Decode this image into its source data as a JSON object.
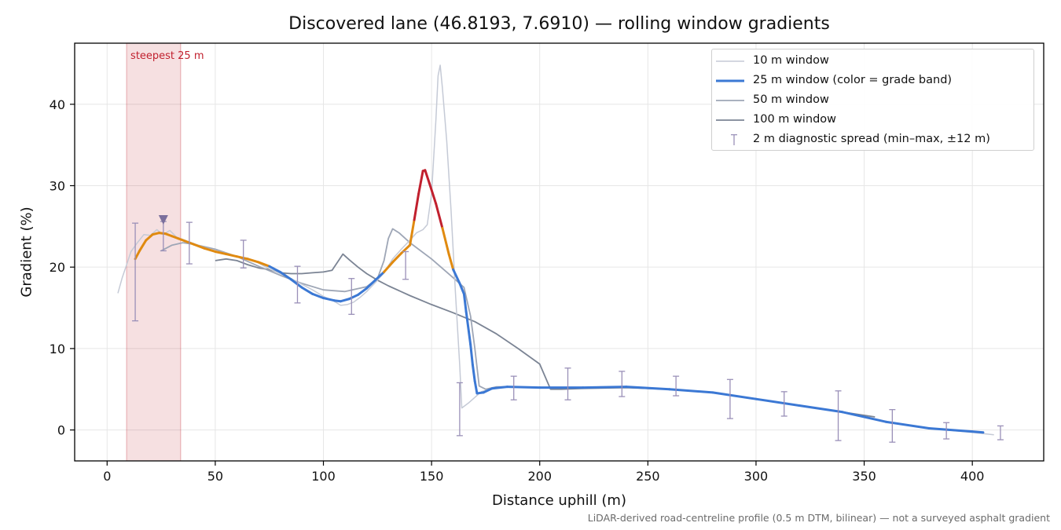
{
  "chart_data": {
    "type": "line",
    "title": "Discovered lane (46.8193, 7.6910) — rolling window gradients",
    "xlabel": "Distance uphill (m)",
    "ylabel": "Gradient (%)",
    "xlim": [
      -15,
      433
    ],
    "ylim": [
      -3.8,
      47.5
    ],
    "xticks": [
      0,
      50,
      100,
      150,
      200,
      250,
      300,
      350,
      400
    ],
    "yticks": [
      0,
      10,
      20,
      30,
      40
    ],
    "grid": true,
    "legend_position": "top-right",
    "footnote": "LiDAR-derived road-centreline profile (0.5 m DTM, bilinear) — not a surveyed asphalt gradient",
    "highlight": {
      "label": "steepest 25 m",
      "x_start": 9,
      "x_end": 34,
      "marker_x": 26,
      "marker_y": 25.8,
      "color": "#c1202e"
    },
    "grade_band_colors": {
      "high": "#c1202e",
      "mid": "#e08a10",
      "low": "#3b78d4"
    },
    "series": [
      {
        "name": "10 m window",
        "color": "#c5cad6",
        "points": [
          [
            5,
            16.8
          ],
          [
            7,
            18.7
          ],
          [
            9,
            20.3
          ],
          [
            11,
            21.9
          ],
          [
            14,
            23.0
          ],
          [
            17,
            24.0
          ],
          [
            20,
            23.9
          ],
          [
            23,
            24.6
          ],
          [
            26,
            24.0
          ],
          [
            29,
            24.5
          ],
          [
            32,
            23.7
          ],
          [
            36,
            23.3
          ],
          [
            40,
            22.9
          ],
          [
            45,
            22.4
          ],
          [
            50,
            22.0
          ],
          [
            55,
            21.7
          ],
          [
            60,
            21.3
          ],
          [
            65,
            21.1
          ],
          [
            70,
            20.5
          ],
          [
            75,
            19.8
          ],
          [
            80,
            19.2
          ],
          [
            85,
            18.6
          ],
          [
            90,
            17.9
          ],
          [
            95,
            17.2
          ],
          [
            100,
            16.4
          ],
          [
            105,
            15.8
          ],
          [
            108,
            15.3
          ],
          [
            111,
            15.4
          ],
          [
            114,
            15.7
          ],
          [
            117,
            16.3
          ],
          [
            120,
            17.0
          ],
          [
            124,
            18.1
          ],
          [
            128,
            19.3
          ],
          [
            132,
            21.0
          ],
          [
            136,
            22.2
          ],
          [
            140,
            23.3
          ],
          [
            143,
            24.2
          ],
          [
            146,
            24.6
          ],
          [
            148,
            25.2
          ],
          [
            150,
            29.0
          ],
          [
            152,
            38.0
          ],
          [
            153,
            43.5
          ],
          [
            154,
            44.8
          ],
          [
            155,
            42.0
          ],
          [
            157,
            35.5
          ],
          [
            159,
            27.0
          ],
          [
            161,
            17.0
          ],
          [
            163,
            8.0
          ],
          [
            164,
            2.7
          ],
          [
            167,
            3.3
          ],
          [
            170,
            4.0
          ],
          [
            173,
            4.7
          ],
          [
            178,
            5.1
          ],
          [
            185,
            5.3
          ],
          [
            200,
            5.2
          ],
          [
            220,
            5.2
          ],
          [
            240,
            5.3
          ],
          [
            260,
            5.0
          ],
          [
            280,
            4.6
          ],
          [
            300,
            3.8
          ],
          [
            320,
            3.0
          ],
          [
            340,
            2.2
          ],
          [
            360,
            1.0
          ],
          [
            380,
            0.2
          ],
          [
            400,
            -0.3
          ],
          [
            410,
            -0.6
          ]
        ]
      },
      {
        "name": "25 m window (color = grade band)",
        "color": "#3b78d4",
        "points": [
          [
            13,
            21.0
          ],
          [
            15,
            22.0
          ],
          [
            18,
            23.3
          ],
          [
            21,
            24.0
          ],
          [
            24,
            24.2
          ],
          [
            27,
            24.1
          ],
          [
            30,
            23.8
          ],
          [
            33,
            23.5
          ],
          [
            36,
            23.2
          ],
          [
            40,
            22.8
          ],
          [
            45,
            22.3
          ],
          [
            50,
            21.9
          ],
          [
            55,
            21.6
          ],
          [
            60,
            21.3
          ],
          [
            65,
            21.0
          ],
          [
            70,
            20.6
          ],
          [
            75,
            20.1
          ],
          [
            80,
            19.4
          ],
          [
            85,
            18.5
          ],
          [
            90,
            17.5
          ],
          [
            95,
            16.7
          ],
          [
            100,
            16.2
          ],
          [
            105,
            15.9
          ],
          [
            108,
            15.8
          ],
          [
            112,
            16.1
          ],
          [
            116,
            16.6
          ],
          [
            120,
            17.4
          ],
          [
            124,
            18.4
          ],
          [
            128,
            19.4
          ],
          [
            132,
            20.6
          ],
          [
            136,
            21.7
          ],
          [
            140,
            22.7
          ],
          [
            142,
            25.8
          ],
          [
            144,
            29.0
          ],
          [
            146,
            31.8
          ],
          [
            147,
            31.9
          ],
          [
            149,
            30.3
          ],
          [
            152,
            27.8
          ],
          [
            155,
            24.8
          ],
          [
            158,
            21.6
          ],
          [
            160,
            19.7
          ],
          [
            163,
            18.0
          ],
          [
            165,
            16.7
          ],
          [
            166,
            14.5
          ],
          [
            168,
            10.5
          ],
          [
            169,
            8.0
          ],
          [
            170,
            6.0
          ],
          [
            171,
            4.5
          ],
          [
            174,
            4.6
          ],
          [
            178,
            5.1
          ],
          [
            185,
            5.3
          ],
          [
            200,
            5.2
          ],
          [
            220,
            5.2
          ],
          [
            240,
            5.3
          ],
          [
            260,
            5.0
          ],
          [
            280,
            4.6
          ],
          [
            300,
            3.8
          ],
          [
            320,
            3.0
          ],
          [
            340,
            2.2
          ],
          [
            360,
            1.0
          ],
          [
            380,
            0.2
          ],
          [
            400,
            -0.2
          ],
          [
            405,
            -0.3
          ]
        ]
      },
      {
        "name": "50 m window",
        "color": "#9ea6b6",
        "points": [
          [
            25,
            22.0
          ],
          [
            30,
            22.7
          ],
          [
            35,
            23.0
          ],
          [
            40,
            22.8
          ],
          [
            50,
            22.2
          ],
          [
            60,
            21.3
          ],
          [
            70,
            20.1
          ],
          [
            80,
            19.0
          ],
          [
            90,
            18.0
          ],
          [
            100,
            17.2
          ],
          [
            110,
            17.0
          ],
          [
            120,
            17.6
          ],
          [
            125,
            18.6
          ],
          [
            128,
            20.8
          ],
          [
            130,
            23.5
          ],
          [
            132,
            24.7
          ],
          [
            135,
            24.2
          ],
          [
            140,
            23.0
          ],
          [
            150,
            21.0
          ],
          [
            160,
            18.7
          ],
          [
            165,
            17.5
          ],
          [
            168,
            14.0
          ],
          [
            170,
            10.0
          ],
          [
            172,
            5.4
          ],
          [
            175,
            5.0
          ],
          [
            180,
            5.3
          ],
          [
            185,
            5.3
          ],
          [
            200,
            5.2
          ],
          [
            220,
            5.2
          ],
          [
            240,
            5.3
          ],
          [
            260,
            5.0
          ],
          [
            280,
            4.6
          ],
          [
            300,
            3.8
          ],
          [
            320,
            3.0
          ],
          [
            340,
            2.2
          ],
          [
            360,
            1.0
          ],
          [
            380,
            0.2
          ],
          [
            395,
            -0.1
          ]
        ]
      },
      {
        "name": "100 m window",
        "color": "#7b8494",
        "points": [
          [
            50,
            20.8
          ],
          [
            55,
            21.0
          ],
          [
            60,
            20.8
          ],
          [
            65,
            20.3
          ],
          [
            70,
            19.9
          ],
          [
            75,
            19.7
          ],
          [
            80,
            19.3
          ],
          [
            85,
            19.2
          ],
          [
            90,
            19.2
          ],
          [
            95,
            19.3
          ],
          [
            100,
            19.4
          ],
          [
            104,
            19.6
          ],
          [
            107,
            20.8
          ],
          [
            109,
            21.6
          ],
          [
            112,
            20.9
          ],
          [
            116,
            20.0
          ],
          [
            120,
            19.2
          ],
          [
            125,
            18.4
          ],
          [
            130,
            17.7
          ],
          [
            140,
            16.5
          ],
          [
            150,
            15.4
          ],
          [
            160,
            14.4
          ],
          [
            170,
            13.3
          ],
          [
            180,
            11.8
          ],
          [
            190,
            10.0
          ],
          [
            200,
            8.1
          ],
          [
            205,
            5.0
          ],
          [
            210,
            5.0
          ],
          [
            220,
            5.1
          ],
          [
            240,
            5.2
          ],
          [
            260,
            5.0
          ],
          [
            280,
            4.6
          ],
          [
            300,
            3.8
          ],
          [
            320,
            3.0
          ],
          [
            340,
            2.2
          ],
          [
            355,
            1.6
          ]
        ]
      },
      {
        "name": "2 m diagnostic spread (min–max, ±12 m)",
        "color": "#9a90b8",
        "type": "errorbar",
        "points": [
          {
            "x": 13,
            "y": 20.7,
            "min": 13.4,
            "max": 25.4
          },
          {
            "x": 26,
            "y": 23.8,
            "min": 22.0,
            "max": 25.6
          },
          {
            "x": 38,
            "y": 23.2,
            "min": 20.4,
            "max": 25.5
          },
          {
            "x": 63,
            "y": 21.2,
            "min": 19.9,
            "max": 23.3
          },
          {
            "x": 88,
            "y": 17.7,
            "min": 15.6,
            "max": 20.1
          },
          {
            "x": 113,
            "y": 16.2,
            "min": 14.2,
            "max": 18.6
          },
          {
            "x": 138,
            "y": 20.8,
            "min": 18.5,
            "max": 21.9
          },
          {
            "x": 163,
            "y": 2.8,
            "min": -0.7,
            "max": 5.8
          },
          {
            "x": 188,
            "y": 5.2,
            "min": 3.7,
            "max": 6.6
          },
          {
            "x": 213,
            "y": 5.2,
            "min": 3.7,
            "max": 7.6
          },
          {
            "x": 238,
            "y": 5.3,
            "min": 4.1,
            "max": 7.2
          },
          {
            "x": 263,
            "y": 5.1,
            "min": 4.2,
            "max": 6.6
          },
          {
            "x": 288,
            "y": 4.5,
            "min": 1.4,
            "max": 6.2
          },
          {
            "x": 313,
            "y": 3.3,
            "min": 1.7,
            "max": 4.7
          },
          {
            "x": 338,
            "y": 2.1,
            "min": -1.3,
            "max": 4.8
          },
          {
            "x": 363,
            "y": 0.9,
            "min": -1.5,
            "max": 2.5
          },
          {
            "x": 388,
            "y": 0.1,
            "min": -1.1,
            "max": 0.9
          },
          {
            "x": 413,
            "y": -0.3,
            "min": -1.2,
            "max": 0.5
          }
        ]
      }
    ]
  }
}
